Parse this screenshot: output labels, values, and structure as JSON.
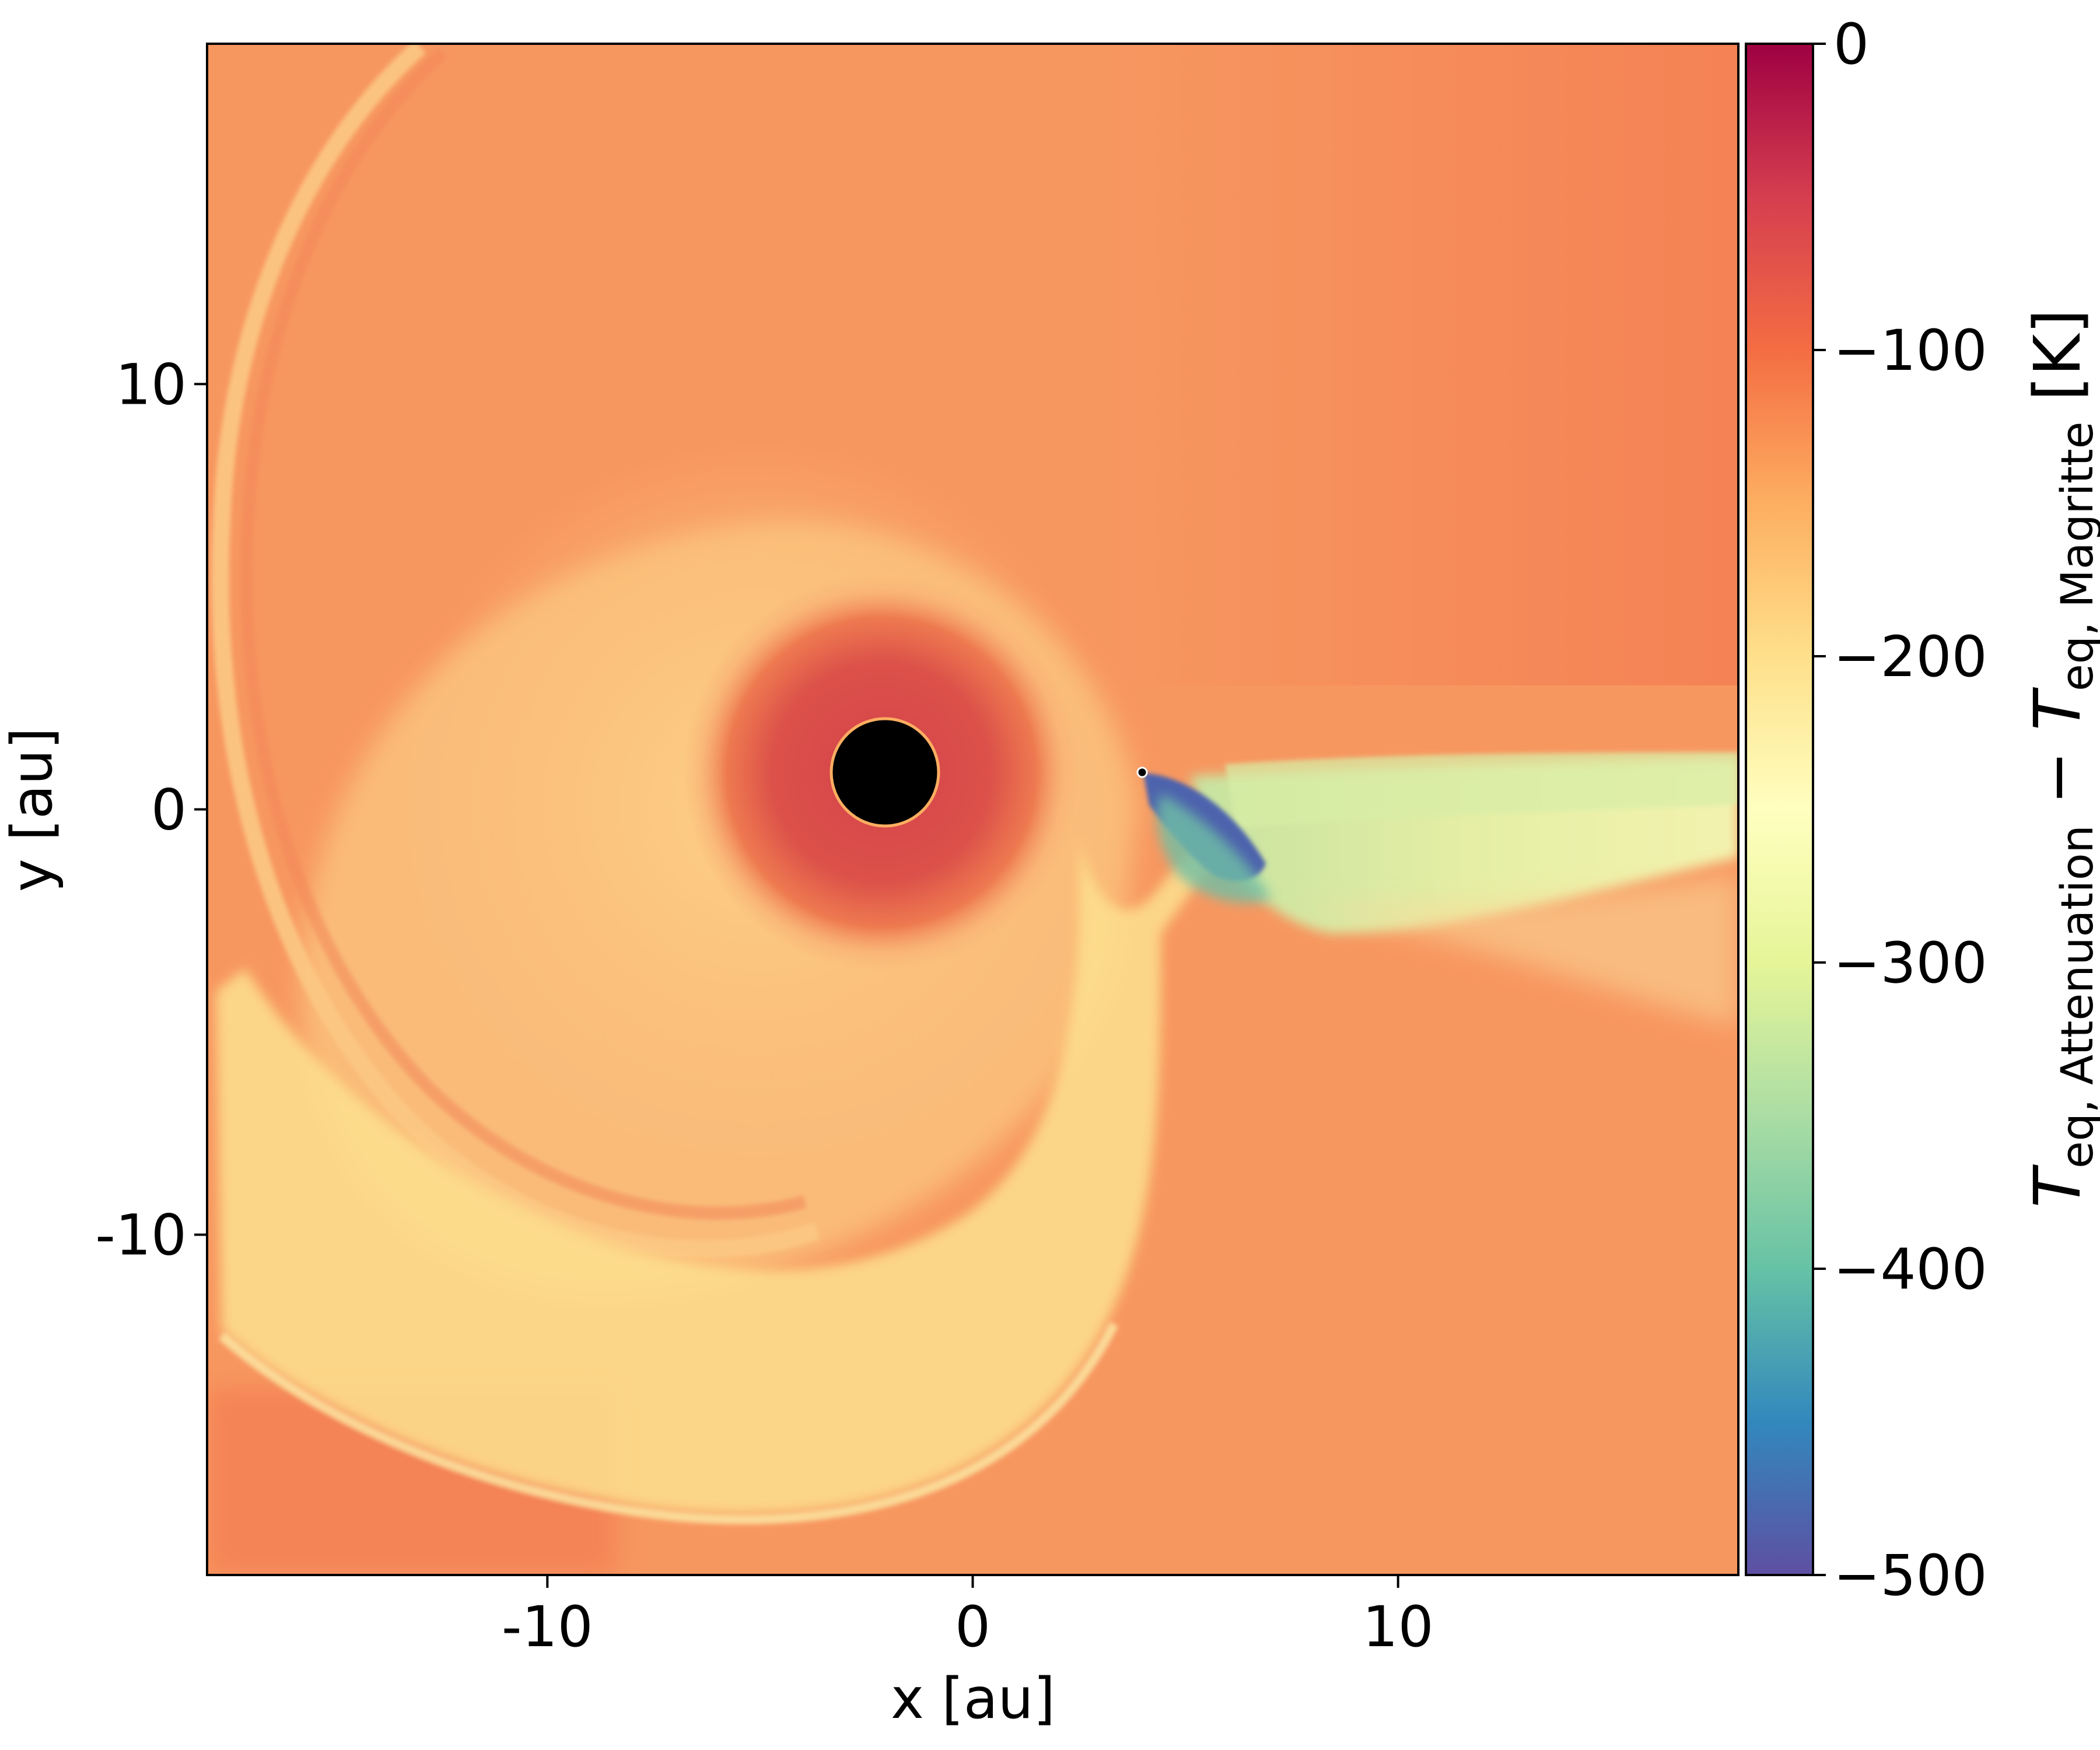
{
  "chart_data": {
    "type": "heatmap",
    "title": "",
    "xlabel": "x [au]",
    "ylabel": "y [au]",
    "xlim": [
      -18,
      18
    ],
    "ylim": [
      -18,
      18
    ],
    "xticks": [
      {
        "value": -10,
        "label": "-10"
      },
      {
        "value": 0,
        "label": "0"
      },
      {
        "value": 10,
        "label": "10"
      }
    ],
    "yticks": [
      {
        "value": 10,
        "label": "10"
      },
      {
        "value": 0,
        "label": "0"
      },
      {
        "value": -10,
        "label": "-10"
      }
    ],
    "colorbar": {
      "label_main": "T",
      "label_sub1": "eq, Attenuation",
      "label_minus": " − ",
      "label_sub2": "eq, Magritte",
      "label_unit": " [K]",
      "colormap": "Spectral",
      "range": [
        -500,
        0
      ],
      "ticks": [
        {
          "value": 0,
          "label": "0"
        },
        {
          "value": -100,
          "label": "−100"
        },
        {
          "value": -200,
          "label": "−200"
        },
        {
          "value": -300,
          "label": "−300"
        },
        {
          "value": -400,
          "label": "−400"
        },
        {
          "value": -500,
          "label": "−500"
        }
      ],
      "colors": [
        "#5e4fa2",
        "#3288bd",
        "#66c2a5",
        "#abdda4",
        "#e6f598",
        "#ffffbf",
        "#fee08b",
        "#fdae61",
        "#f46d43",
        "#d53e4f",
        "#9e0142"
      ]
    },
    "features": {
      "star": {
        "x": -2.1,
        "y": 0,
        "radius": 2.5,
        "color": "#000000"
      },
      "companion": {
        "x": 4.0,
        "y": 0,
        "color": "#000000"
      },
      "background_value": -145,
      "inner_halo_value": -75,
      "spiral_value": -205,
      "wake_value": -260,
      "companion_wake_min_value": -480
    }
  }
}
